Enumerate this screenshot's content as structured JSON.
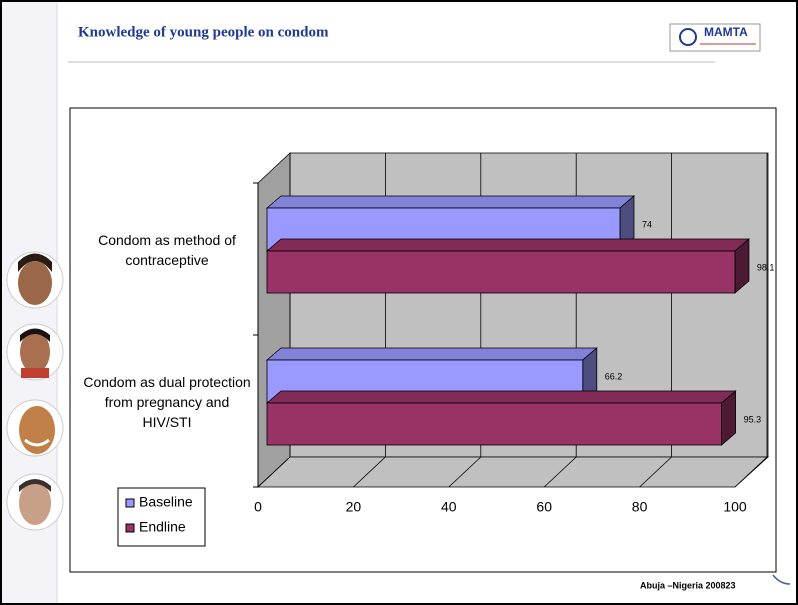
{
  "header": {
    "title": "Knowledge of young people on condom",
    "logo": "MAMTA"
  },
  "chart_data": {
    "type": "bar3d_horizontal",
    "categories": [
      "Condom as method of contraceptive",
      "Condom as dual protection from pregnancy and HIV/STI"
    ],
    "series": [
      {
        "name": "Baseline",
        "color": "#9999ff",
        "values": [
          74,
          66.2
        ]
      },
      {
        "name": "Endline",
        "color": "#993366",
        "values": [
          98.1,
          95.3
        ]
      }
    ],
    "xlim": [
      0,
      100
    ],
    "xticks": [
      0,
      20,
      40,
      60,
      80,
      100
    ],
    "grid": true,
    "legend": "bottom-left"
  },
  "footer": {
    "text": "Abuja –Nigeria 200823"
  }
}
